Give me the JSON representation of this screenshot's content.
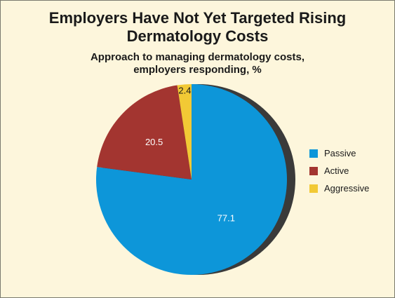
{
  "chart_data": {
    "type": "pie",
    "title_lines": [
      "Employers Have Not Yet Targeted Rising",
      "Dermatology Costs"
    ],
    "subtitle_lines": [
      "Approach to managing dermatology costs,",
      "employers responding, %"
    ],
    "categories": [
      "Passive",
      "Active",
      "Aggressive"
    ],
    "values": [
      77.1,
      20.5,
      2.4
    ],
    "value_labels": [
      "77.1",
      "20.5",
      "2.4"
    ],
    "colors": [
      "#0d96d9",
      "#a33530",
      "#f2c935"
    ],
    "start": "12 o'clock",
    "direction": "clockwise",
    "legend_position": "right"
  }
}
